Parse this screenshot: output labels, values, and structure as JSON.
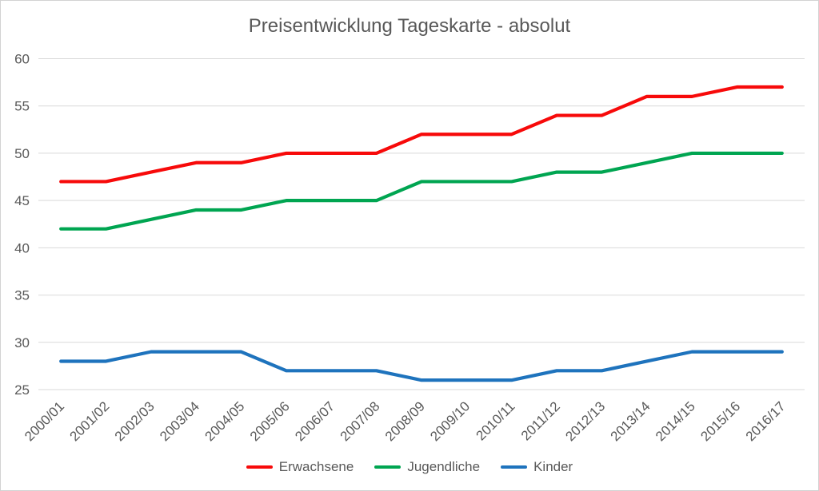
{
  "chart_data": {
    "type": "line",
    "title": "Preisentwicklung Tageskarte - absolut",
    "categories": [
      "2000/01",
      "2001/02",
      "2002/03",
      "2003/04",
      "2004/05",
      "2005/06",
      "2006/07",
      "2007/08",
      "2008/09",
      "2009/10",
      "2010/11",
      "2011/12",
      "2012/13",
      "2013/14",
      "2014/15",
      "2015/16",
      "2016/17"
    ],
    "series": [
      {
        "name": "Erwachsene",
        "color": "#f70a0a",
        "values": [
          47,
          47,
          48,
          49,
          49,
          50,
          50,
          50,
          52,
          52,
          52,
          54,
          54,
          56,
          56,
          57,
          57
        ]
      },
      {
        "name": "Jugendliche",
        "color": "#00a551",
        "values": [
          42,
          42,
          43,
          44,
          44,
          45,
          45,
          45,
          47,
          47,
          47,
          48,
          48,
          49,
          50,
          50,
          50
        ]
      },
      {
        "name": "Kinder",
        "color": "#1e73bd",
        "values": [
          28,
          28,
          29,
          29,
          29,
          27,
          27,
          27,
          26,
          26,
          26,
          27,
          27,
          28,
          29,
          29,
          29
        ]
      }
    ],
    "xlabel": "",
    "ylabel": "",
    "ylim": [
      25,
      60
    ],
    "yticks": [
      25,
      30,
      35,
      40,
      45,
      50,
      55,
      60
    ],
    "grid": true,
    "grid_color": "#d9d9d9",
    "text_color": "#595959",
    "legend_position": "bottom"
  }
}
